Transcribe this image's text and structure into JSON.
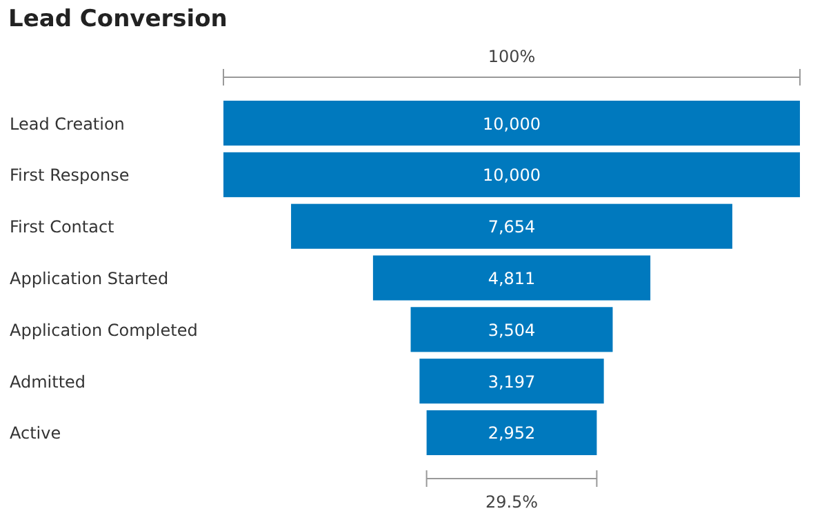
{
  "chart_data": {
    "type": "other",
    "title": "Lead Conversion",
    "categories": [
      "Lead Creation",
      "First Response",
      "First Contact",
      "Application Started",
      "Application Completed",
      "Admitted",
      "Active"
    ],
    "values": [
      10000,
      10000,
      7654,
      4811,
      3504,
      3197,
      2952
    ],
    "value_labels": [
      "10,000",
      "10,000",
      "7,654",
      "4,811",
      "3,504",
      "3,197",
      "2,952"
    ],
    "color": "#0079be",
    "annotations": [
      "100%",
      "29.5%"
    ]
  }
}
